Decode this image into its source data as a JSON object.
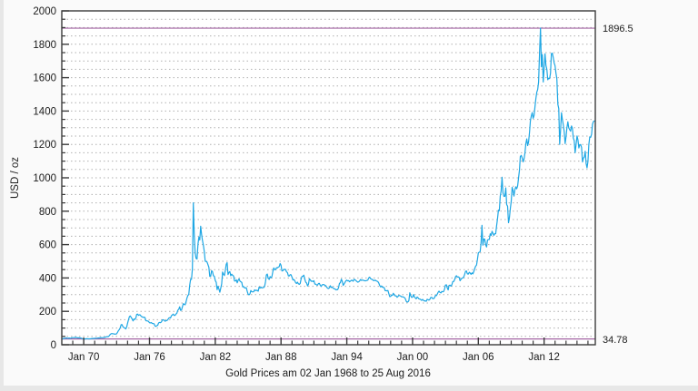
{
  "chart_data": {
    "type": "line",
    "title": "Gold Prices am 02 Jan 1968 to 25 Aug 2016",
    "ylabel": "USD / oz",
    "xlim": [
      1968.0,
      2016.67
    ],
    "ylim": [
      0,
      2000
    ],
    "grid": "horizontal dotted lines every 50 USD",
    "legend_position": "none",
    "y_ticks_major": [
      0,
      200,
      400,
      600,
      800,
      1000,
      1200,
      1400,
      1600,
      1800,
      2000
    ],
    "y_minor_step": 50,
    "x_ticks_major": [
      {
        "year": 1970,
        "label": "Jan 70"
      },
      {
        "year": 1976,
        "label": "Jan 76"
      },
      {
        "year": 1982,
        "label": "Jan 82"
      },
      {
        "year": 1988,
        "label": "Jan 88"
      },
      {
        "year": 1994,
        "label": "Jan 94"
      },
      {
        "year": 2000,
        "label": "Jan 00"
      },
      {
        "year": 2006,
        "label": "Jan 06"
      },
      {
        "year": 2012,
        "label": "Jan 12"
      }
    ],
    "x_minor_step_years": 1,
    "annotations": {
      "max": {
        "value": 1896.5,
        "label": "1896.5"
      },
      "min": {
        "value": 34.78,
        "label": "34.78"
      }
    },
    "colors": {
      "line": "#1fa7e4",
      "annotation_line": "#a566a5",
      "grid": "#b0b0b0",
      "frame": "#3c3c3c",
      "plot_background": "#ffffff",
      "text": "#1b1b1b"
    },
    "series": [
      {
        "name": "gold-price-usd-per-oz",
        "start_year": 1968,
        "points_per_year": 12,
        "values": [
          35.2,
          35.2,
          38,
          37.9,
          39.2,
          41.1,
          39.6,
          39.2,
          40.2,
          39.1,
          39.8,
          41.9,
          42.3,
          42.6,
          43.2,
          43.3,
          43.5,
          41.4,
          41.8,
          41.1,
          40.9,
          40.4,
          37.4,
          35.2,
          35,
          35,
          35.1,
          35.6,
          36,
          35.4,
          35.3,
          35.4,
          36.2,
          37.5,
          37.4,
          37.4,
          37.9,
          38.7,
          38.9,
          39,
          40.5,
          40.1,
          41.2,
          42.7,
          42,
          42.5,
          42.9,
          43.5,
          45.8,
          48.3,
          48.3,
          49,
          54.6,
          62.1,
          65.7,
          67,
          65.5,
          65.1,
          62.9,
          63.9,
          65.1,
          74.2,
          84.4,
          90.5,
          102,
          120.1,
          120.2,
          106.8,
          103,
          100.1,
          94.8,
          106.5,
          129.2,
          150.2,
          168.4,
          172.2,
          163.3,
          154.1,
          143,
          154.6,
          151.8,
          158.8,
          181.7,
          183.9,
          176.3,
          179.3,
          178.2,
          169.5,
          167.4,
          164.2,
          165.2,
          163,
          143.9,
          142.9,
          142.4,
          139.3,
          131.5,
          131.1,
          132.6,
          127.9,
          126.9,
          125.7,
          112.5,
          109.9,
          114.2,
          116.1,
          130.5,
          133.8,
          132.3,
          136.3,
          148.2,
          149.2,
          146.6,
          140.8,
          143.4,
          144.9,
          149.5,
          158.9,
          162.1,
          160.5,
          173.2,
          178.2,
          183.7,
          175.3,
          176.3,
          183.8,
          188.7,
          206.3,
          212.1,
          227.4,
          206.1,
          207.8,
          227.3,
          245.7,
          242,
          239.2,
          257.6,
          279.1,
          294.7,
          301.1,
          355.1,
          391.7,
          392,
          455.1,
          850,
          665,
          553.6,
          517.4,
          513.8,
          600.7,
          644.3,
          627.1,
          710,
          661.1,
          623.5,
          594.9,
          557.4,
          499.8,
          498.8,
          495.8,
          479.7,
          464.8,
          409.3,
          410.2,
          443.6,
          437.8,
          413.4,
          410.1,
          384.4,
          374.1,
          330,
          350.3,
          333.8,
          314.9,
          338.9,
          364.2,
          435.8,
          422.2,
          414.5,
          444.3,
          481.3,
          491.9,
          420,
          432.9,
          438.1,
          412.8,
          422.7,
          416.2,
          412,
          382,
          381.7,
          389.4,
          370.9,
          386.1,
          394.3,
          381.4,
          377.4,
          373.1,
          347.5,
          348.3,
          341,
          340.2,
          341.2,
          320.1,
          302.7,
          299.1,
          304.2,
          324.8,
          316.6,
          316.8,
          317.3,
          329,
          324.3,
          325.9,
          325.3,
          320.8,
          345.4,
          338.9,
          345.7,
          340.4,
          342.6,
          342.6,
          348.5,
          376.6,
          417.7,
          423.5,
          398.8,
          391.2,
          408.3,
          401.1,
          408.9,
          438.4,
          460.2,
          449.6,
          450.5,
          461.2,
          460.2,
          465.4,
          467.6,
          486.3,
          476.6,
          442.1,
          443.6,
          451.6,
          451,
          451.3,
          437.6,
          431.3,
          412.4,
          412.4,
          420.2,
          418.5,
          404,
          387.8,
          390.1,
          384.1,
          371,
          367.6,
          375,
          365.4,
          361.8,
          366.9,
          394.2,
          409.4,
          410.1,
          416.8,
          393.1,
          374.3,
          369.2,
          352.3,
          362.5,
          394.7,
          389,
          380.7,
          381.7,
          378.2,
          383.6,
          363.8,
          363.3,
          358.4,
          356.8,
          366.7,
          367.5,
          356.2,
          348.7,
          358.7,
          360.2,
          361.1,
          354.5,
          353.9,
          344.3,
          338.5,
          337.2,
          340.8,
          353.1,
          342.9,
          345.5,
          338.9,
          335.1,
          334.8,
          329,
          329.4,
          330.1,
          342.1,
          367.2,
          371.9,
          392.2,
          379.8,
          355.3,
          364.2,
          373.5,
          383.3,
          386.9,
          381.9,
          384.1,
          377.3,
          381.3,
          385.6,
          385.5,
          380.4,
          391.6,
          389.8,
          384.4,
          379.3,
          374.9,
          376.4,
          382.1,
          391,
          385.1,
          387.6,
          386.2,
          383.8,
          383.1,
          383.1,
          385.3,
          387,
          400.3,
          404.8,
          396.2,
          392.8,
          390.6,
          385.3,
          383.5,
          387.4,
          383.1,
          381.1,
          377.9,
          369,
          354.9,
          346.4,
          352.1,
          344.5,
          343.9,
          340.8,
          324.1,
          324,
          322.8,
          324.9,
          306.7,
          288.7,
          289.1,
          297.4,
          295.9,
          308.3,
          299.1,
          292.3,
          292.9,
          284.1,
          288.9,
          296.3,
          294.1,
          291.3,
          287.1,
          287.3,
          286,
          282.6,
          276.8,
          261.3,
          255.8,
          256.7,
          264.7,
          311.3,
          293.2,
          283.7,
          284.3,
          300.9,
          286.4,
          279.7,
          275.2,
          285.7,
          281.6,
          274.5,
          273.7,
          270,
          266,
          271.5,
          265.5,
          261.9,
          263,
          260.5,
          272.4,
          270.2,
          267.5,
          272.4,
          283.4,
          283.1,
          276.2,
          275.9,
          281.5,
          295.5,
          294.1,
          302.7,
          314.5,
          321.2,
          313.3,
          310.3,
          319.2,
          316.6,
          319.2,
          332.6,
          356.9,
          359,
          340.6,
          328.2,
          355.7,
          356.4,
          351,
          359.8,
          379,
          378.9,
          389.2,
          407.6,
          413.8,
          405.3,
          406.7,
          403,
          383.4,
          392.4,
          398.1,
          400.5,
          405.3,
          420.5,
          439.4,
          442.1,
          424.2,
          423.4,
          434.2,
          429.2,
          421.9,
          430.7,
          424.5,
          437.9,
          456,
          469.9,
          476.7,
          510.1,
          549.9,
          555,
          557.1,
          610.6,
          715,
          596.2,
          633.8,
          632.6,
          598.2,
          585.8,
          627.8,
          629.8,
          631.2,
          664.7,
          654.9,
          679.4,
          666.9,
          655.5,
          665.3,
          665.4,
          712.7,
          754.6,
          806.3,
          803.2,
          889.6,
          922.3,
          1003.4,
          909.7,
          888.7,
          889.5,
          939.8,
          839,
          829.9,
          730.8,
          760.9,
          816.1,
          858.7,
          943.2,
          924.3,
          890.2,
          928.6,
          945.7,
          934.2,
          949.4,
          996.6,
          1043.2,
          1127,
          1134.7,
          1118,
          1095.4,
          1113.3,
          1148.7,
          1205.4,
          1232.9,
          1193,
          1215.8,
          1271,
          1342,
          1369.9,
          1390.6,
          1356.4,
          1372.7,
          1424,
          1473.8,
          1512.6,
          1528.7,
          1572.8,
          1755.8,
          1896.5,
          1665.2,
          1739,
          1574,
          1654.1,
          1743,
          1673.8,
          1650.1,
          1587.7,
          1596.7,
          1593.9,
          1626,
          1744.8,
          1746.6,
          1721.6,
          1688.5,
          1671.9,
          1627.6,
          1593.1,
          1440,
          1414,
          1200,
          1286.7,
          1390,
          1348.6,
          1316.2,
          1275.9,
          1205,
          1244.3,
          1301,
          1336.1,
          1299,
          1288.7,
          1279.1,
          1311,
          1296.3,
          1238,
          1223.6,
          1150,
          1201.4,
          1251,
          1227.2,
          1178.6,
          1197.9,
          1199,
          1181.5,
          1095,
          1117.9,
          1124.8,
          1159.3,
          1086.4,
          1060,
          1097.4,
          1199.5,
          1245.1,
          1242.3,
          1260.9,
          1320,
          1336.7,
          1340
        ]
      }
    ]
  }
}
